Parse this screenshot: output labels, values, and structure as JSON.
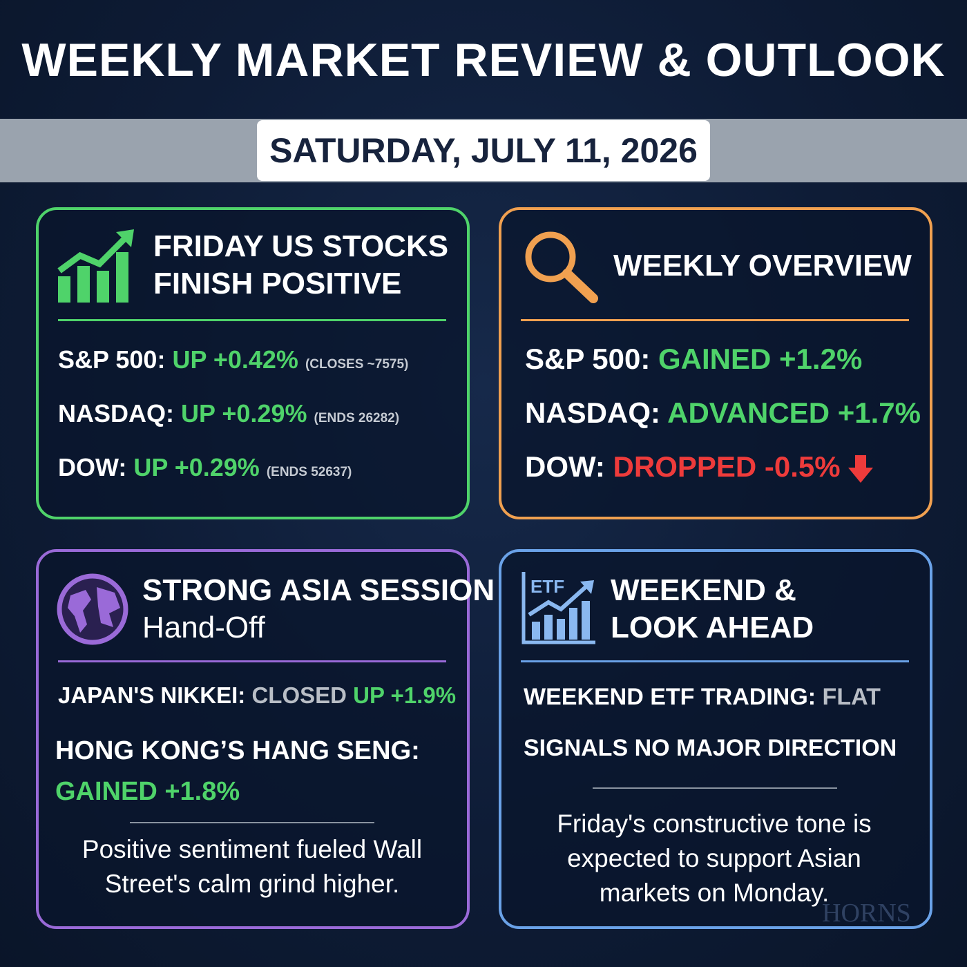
{
  "header": {
    "title": "WEEKLY MARKET REVIEW & OUTLOOK",
    "date": "SATURDAY, JULY 11, 2026"
  },
  "panels": [
    {
      "title_lines": [
        "FRIDAY US STOCKS",
        "FINISH POSITIVE"
      ],
      "rows": [
        {
          "label": "S&P 500:",
          "change": "UP +0.42%",
          "note": "(CLOSES ~7575)"
        },
        {
          "label": "NASDAQ:",
          "change": "UP +0.29%",
          "note": "(ENDS 26282)"
        },
        {
          "label": "DOW:",
          "change": "UP +0.29%",
          "note": "(ENDS 52637)"
        }
      ]
    },
    {
      "title_lines": [
        "WEEKLY OVERVIEW"
      ],
      "rows": [
        {
          "label": "S&P 500:",
          "change": "GAINED +1.2%"
        },
        {
          "label": "NASDAQ:",
          "change": "ADVANCED +1.7%"
        },
        {
          "label": "DOW:",
          "change": "DROPPED -0.5%"
        }
      ]
    },
    {
      "title_lines": [
        "STRONG ASIA SESSION",
        "Hand-Off"
      ],
      "rows": [
        {
          "label": "JAPAN'S NIKKEI:",
          "status": "CLOSED",
          "change": "UP +1.9%"
        },
        {
          "label": "HONG KONG’S HANG SENG:",
          "change": "GAINED +1.8%"
        }
      ],
      "note": "Positive sentiment fueled Wall Street's calm grind higher."
    },
    {
      "title_lines": [
        "WEEKEND &",
        "LOOK AHEAD"
      ],
      "icon_label": "ETF",
      "rows": [
        {
          "label": "WEEKEND ETF TRADING:",
          "status": "FLAT"
        },
        {
          "label": "SIGNALS NO MAJOR DIRECTION"
        }
      ],
      "note": "Friday's constructive tone is expected to support Asian markets on Monday."
    }
  ],
  "watermark": "HORNS"
}
